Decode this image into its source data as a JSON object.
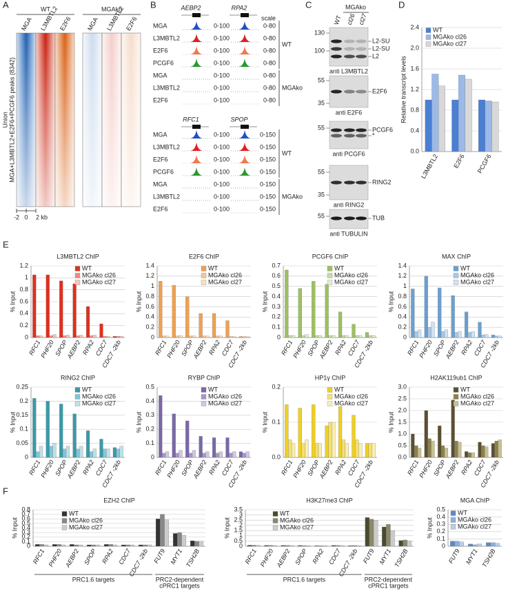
{
  "panel_labels": [
    "A",
    "B",
    "C",
    "D",
    "E",
    "F"
  ],
  "heatmap": {
    "conditions": [
      "WT",
      "MGAko"
    ],
    "columns": [
      "MGA",
      "L3MBTL2",
      "E2F6"
    ],
    "row_label": [
      "Union",
      "MGA+L3MBTL2+E2F6+PCGF6 peaks (8342)"
    ],
    "scale": [
      "-2",
      "0",
      "2 kb"
    ]
  },
  "tracks": {
    "scale_label": "scale",
    "blocks": [
      {
        "genes": [
          "AEBP2",
          "RPA2"
        ],
        "ranges": [
          "0-100",
          "0-80"
        ]
      },
      {
        "genes": [
          "RFC1",
          "SPOP"
        ],
        "ranges": [
          "0-100",
          "0-150"
        ]
      }
    ],
    "conditions": [
      {
        "name": "WT",
        "rows": [
          "MGA",
          "L3MBTL2",
          "E2F6",
          "PCGF6"
        ]
      },
      {
        "name": "MGAko",
        "rows": [
          "MGA",
          "L3MBTL2",
          "E2F6"
        ]
      }
    ]
  },
  "blots": {
    "group": "MGAko",
    "lanes": [
      "WT",
      "cl26",
      "cl27"
    ],
    "panels": [
      {
        "markers": [
          130,
          100
        ],
        "bands": [
          "L2-SU",
          "L2-SU",
          "L2"
        ],
        "antibody": "anti L3MBTL2"
      },
      {
        "markers": [
          55,
          35
        ],
        "bands": [
          "E2F6"
        ],
        "antibody": "anti E2F6"
      },
      {
        "markers": [
          55
        ],
        "bands": [
          "PCGF6",
          "*"
        ],
        "antibody": "anti PCGF6"
      },
      {
        "markers": [
          55,
          35
        ],
        "bands": [
          "RING2"
        ],
        "antibody": "anti RING2"
      },
      {
        "markers": [
          55
        ],
        "bands": [
          "TUB"
        ],
        "antibody": "anti TUBULIN"
      }
    ]
  },
  "chart_data": [
    {
      "type": "bar",
      "ylabel": "Relative transcript levels",
      "categories": [
        "L3MBTL2",
        "E2F6",
        "PCGF6"
      ],
      "series": [
        {
          "name": "WT",
          "color": "#4a7fd4",
          "values": [
            1.0,
            1.0,
            1.0
          ]
        },
        {
          "name": "MGAko cl26",
          "color": "#9cb9e8",
          "values": [
            1.5,
            1.48,
            0.98
          ]
        },
        {
          "name": "MGAko cl27",
          "color": "#d8d8d8",
          "values": [
            1.27,
            1.4,
            0.96
          ]
        }
      ],
      "ylim": [
        0,
        2.4
      ],
      "yticks": [
        {
          "value": 0,
          "label": "0.0"
        },
        0.4,
        0.8,
        1.2,
        1.6,
        {
          "value": 2,
          "label": "2.0"
        },
        2.4
      ],
      "grid": true
    },
    {
      "type": "bar",
      "title": "L3MBTL2 ChIP",
      "ylabel": "% Input",
      "categories": [
        "RFC1",
        "PHF20",
        "SPOP",
        "AEBP2",
        "RPA2",
        "CDC7",
        "CDC7 -2kb"
      ],
      "series": [
        {
          "name": "WT",
          "color": "#e0301e",
          "values": [
            1.05,
            1.05,
            0.95,
            0.9,
            0.52,
            0.23,
            0.02
          ]
        },
        {
          "name": "MGAko cl26",
          "color": "#f08a80",
          "values": [
            0.03,
            0.03,
            0.03,
            0.03,
            0.03,
            0.02,
            0.02
          ]
        },
        {
          "name": "MGAko cl27",
          "color": "#f6c4bc",
          "values": [
            0.03,
            0.05,
            0.04,
            0.04,
            0.04,
            0.02,
            0.02
          ]
        }
      ],
      "ylim": [
        0,
        1.2
      ],
      "yticks": [
        0,
        0.2,
        0.4,
        0.6,
        0.8,
        1,
        1.2
      ],
      "grid": true
    },
    {
      "type": "bar",
      "title": "E2F6 ChIP",
      "ylabel": "% Input",
      "categories": [
        "RFC1",
        "PHF20",
        "SPOP",
        "AEBP2",
        "RPA2",
        "CDC7",
        "CDC7 -2kb"
      ],
      "series": [
        {
          "name": "WT",
          "color": "#f0a050",
          "values": [
            1.1,
            1.02,
            0.8,
            0.47,
            0.47,
            0.33,
            0.02
          ]
        },
        {
          "name": "MGAko cl26",
          "color": "#f6c690",
          "values": [
            0.03,
            0.03,
            0.03,
            0.03,
            0.03,
            0.02,
            0.02
          ]
        },
        {
          "name": "MGAko cl27",
          "color": "#fae0c0",
          "values": [
            0.03,
            0.04,
            0.03,
            0.03,
            0.03,
            0.02,
            0.02
          ]
        }
      ],
      "ylim": [
        0,
        1.4
      ],
      "yticks": [
        0,
        0.2,
        0.4,
        0.6,
        0.8,
        1,
        1.2,
        1.4
      ],
      "grid": true
    },
    {
      "type": "bar",
      "title": "PCGF6 ChIP",
      "ylabel": "% Input",
      "categories": [
        "RFC1",
        "PHF20",
        "SPOP",
        "AEBP2",
        "RPA2",
        "CDC7",
        "CDC7 -2kb"
      ],
      "series": [
        {
          "name": "WT",
          "color": "#9dc060",
          "values": [
            0.66,
            0.48,
            0.55,
            0.52,
            0.25,
            0.13,
            0.05
          ]
        },
        {
          "name": "MGAko cl26",
          "color": "#c8dca0",
          "values": [
            0.02,
            0.02,
            0.02,
            0.02,
            0.02,
            0.02,
            0.02
          ]
        },
        {
          "name": "MGAko cl27",
          "color": "#e2edcf",
          "values": [
            0.02,
            0.03,
            0.02,
            0.02,
            0.02,
            0.02,
            0.02
          ]
        }
      ],
      "ylim": [
        0,
        0.7
      ],
      "yticks": [
        0,
        0.1,
        0.2,
        0.3,
        0.4,
        0.5,
        0.6,
        0.7
      ],
      "grid": true
    },
    {
      "type": "bar",
      "title": "MAX ChIP",
      "ylabel": "% Input",
      "categories": [
        "RFC1",
        "PHF20",
        "SPOP",
        "AEBP2",
        "RPA2",
        "CDC7",
        "CDC7 -2kb"
      ],
      "series": [
        {
          "name": "WT",
          "color": "#6aa0d0",
          "values": [
            0.95,
            1.2,
            0.97,
            0.82,
            0.5,
            0.3,
            0.05
          ]
        },
        {
          "name": "MGAko cl26",
          "color": "#a8c8e8",
          "values": [
            0.12,
            0.2,
            0.12,
            0.1,
            0.1,
            0.05,
            0.03
          ]
        },
        {
          "name": "MGAko cl27",
          "color": "#d0e2f2",
          "values": [
            0.15,
            0.3,
            0.15,
            0.12,
            0.12,
            0.06,
            0.03
          ]
        }
      ],
      "ylim": [
        0,
        1.4
      ],
      "yticks": [
        0,
        0.2,
        0.4,
        0.6,
        0.8,
        1,
        1.2,
        1.4
      ],
      "grid": true
    },
    {
      "type": "bar",
      "title": "RING2 ChIP",
      "ylabel": "% Input",
      "categories": [
        "RFC1",
        "PHF20",
        "SPOP",
        "AEBP2",
        "RPA2",
        "CDC7",
        "CDC7 -2kb"
      ],
      "series": [
        {
          "name": "WT",
          "color": "#3a9aa8",
          "values": [
            0.21,
            0.2,
            0.19,
            0.155,
            0.095,
            0.065,
            0.035
          ]
        },
        {
          "name": "MGAko cl26",
          "color": "#80c8d8",
          "values": [
            0.02,
            0.04,
            0.03,
            0.03,
            0.02,
            0.03,
            0.03
          ]
        },
        {
          "name": "MGAko cl27",
          "color": "#c0e0e8",
          "values": [
            0.04,
            0.05,
            0.04,
            0.04,
            0.03,
            0.03,
            0.04
          ]
        }
      ],
      "ylim": [
        0,
        0.25
      ],
      "yticks": [
        0,
        0.05,
        0.1,
        0.15,
        0.2,
        0.25
      ],
      "grid": true
    },
    {
      "type": "bar",
      "title": "RYBP ChIP",
      "ylabel": "% Input",
      "categories": [
        "RFC1",
        "PHF20",
        "SPOP",
        "AEBP2",
        "RPA2",
        "CDC7",
        "CDC7 -2kb"
      ],
      "series": [
        {
          "name": "WT",
          "color": "#7a68a8",
          "values": [
            0.44,
            0.31,
            0.26,
            0.15,
            0.14,
            0.14,
            0.04
          ]
        },
        {
          "name": "MGAko cl26",
          "color": "#a898c8",
          "values": [
            0.03,
            0.03,
            0.03,
            0.03,
            0.03,
            0.03,
            0.03
          ]
        },
        {
          "name": "MGAko cl27",
          "color": "#d0c8e0",
          "values": [
            0.04,
            0.05,
            0.05,
            0.04,
            0.04,
            0.04,
            0.04
          ]
        }
      ],
      "ylim": [
        0,
        0.5
      ],
      "yticks": [
        0,
        0.1,
        0.2,
        0.3,
        0.4,
        0.5
      ],
      "grid": true
    },
    {
      "type": "bar",
      "title": "HP1γ ChIP",
      "ylabel": "% Input",
      "categories": [
        "RFC1",
        "PHF20",
        "SPOP",
        "AEBP2",
        "RPA2",
        "CDC7",
        "CDC7 -2kb"
      ],
      "series": [
        {
          "name": "WT",
          "color": "#f0d020",
          "values": [
            0.15,
            0.14,
            0.15,
            0.09,
            0.145,
            0.12,
            0.04
          ]
        },
        {
          "name": "MGAko cl26",
          "color": "#f5e070",
          "values": [
            0.05,
            0.04,
            0.04,
            0.1,
            0.05,
            0.05,
            0.04
          ]
        },
        {
          "name": "MGAko cl27",
          "color": "#faeeb0",
          "values": [
            0.04,
            0.05,
            0.04,
            0.1,
            0.04,
            0.04,
            0.04
          ]
        }
      ],
      "ylim": [
        0,
        0.2
      ],
      "yticks": [
        {
          "value": 0,
          "label": "0.0"
        },
        0.1,
        0.2
      ],
      "grid": true
    },
    {
      "type": "bar",
      "title": "H2AK119ub1 ChIP",
      "ylabel": "% Input",
      "categories": [
        "RFC1",
        "PHF20",
        "SPOP",
        "AEBP2",
        "RPA2",
        "CDC7",
        "CDC7 -2kb"
      ],
      "series": [
        {
          "name": "WT",
          "color": "#5a5030",
          "values": [
            1.0,
            2.0,
            1.35,
            2.45,
            0.25,
            0.65,
            0.6
          ]
        },
        {
          "name": "MGAko cl26",
          "color": "#8a8050",
          "values": [
            0.5,
            0.8,
            0.5,
            0.7,
            0.2,
            0.5,
            0.7
          ]
        },
        {
          "name": "MGAko cl27",
          "color": "#c8c090",
          "values": [
            0.4,
            0.7,
            0.4,
            0.65,
            0.2,
            0.45,
            0.75
          ]
        }
      ],
      "ylim": [
        0,
        3
      ],
      "yticks": [
        {
          "value": 0,
          "label": "0.0"
        },
        0.5,
        {
          "value": 1,
          "label": "1.0"
        },
        1.5,
        {
          "value": 2,
          "label": "2.0"
        },
        2.5,
        {
          "value": 3,
          "label": "3.0"
        }
      ],
      "grid": true
    },
    {
      "type": "bar",
      "title": "EZH2 ChIP",
      "ylabel": "% Input",
      "categories": [
        "RFC1",
        "PHF20",
        "AEBP2",
        "SPOP",
        "RPA2",
        "CDC7",
        "CDC7 -2kb",
        "FUT9",
        "MYT1",
        "TSH2B"
      ],
      "series": [
        {
          "name": "WT",
          "color": "#333333",
          "values": [
            0.04,
            0.04,
            0.04,
            0.03,
            0.04,
            0.03,
            0.03,
            0.6,
            0.28,
            0.12
          ]
        },
        {
          "name": "MGAko cl26",
          "color": "#888888",
          "values": [
            0.04,
            0.04,
            0.03,
            0.03,
            0.04,
            0.03,
            0.03,
            0.7,
            0.3,
            0.11
          ]
        },
        {
          "name": "MGAko cl27",
          "color": "#cccccc",
          "values": [
            0.03,
            0.03,
            0.03,
            0.03,
            0.03,
            0.03,
            0.03,
            0.58,
            0.24,
            0.11
          ]
        }
      ],
      "ylim": [
        0,
        0.8
      ],
      "yticks": [
        0,
        0.1,
        0.2,
        0.3,
        0.4,
        0.5,
        0.6,
        0.7,
        0.8
      ],
      "grid": true,
      "groups": [
        [
          "PRC1.6 targets"
        ],
        [
          "PRC2-dependent",
          "cPRC1 targets"
        ]
      ]
    },
    {
      "type": "bar",
      "title": "H3K27me3 ChIP",
      "ylabel": "% Input",
      "categories": [
        "RFC1",
        "PHF20",
        "AEBP2",
        "SPOP",
        "RPA2",
        "CDC7",
        "CDC7 -2kb",
        "FUT9",
        "MYT1",
        "TSH2B"
      ],
      "series": [
        {
          "name": "WT",
          "color": "#4a4a30",
          "values": [
            0.1,
            0.08,
            0.08,
            0.07,
            0.05,
            0.08,
            0.06,
            2.75,
            1.85,
            0.55
          ]
        },
        {
          "name": "MGAko cl26",
          "color": "#8a8a6a",
          "values": [
            0.1,
            0.08,
            0.08,
            0.06,
            0.05,
            0.07,
            0.07,
            2.6,
            2.1,
            0.6
          ]
        },
        {
          "name": "MGAko cl27",
          "color": "#cccccc",
          "values": [
            0.09,
            0.07,
            0.07,
            0.06,
            0.05,
            0.07,
            0.06,
            2.5,
            1.5,
            0.5
          ]
        }
      ],
      "ylim": [
        0,
        3.5
      ],
      "yticks": [
        0,
        0.5,
        1,
        1.5,
        2,
        2.5,
        3,
        3.5
      ],
      "grid": true,
      "groups": [
        [
          "PRC1.6 targets"
        ],
        [
          "PRC2-dependent",
          "cPRC1 targets"
        ]
      ]
    },
    {
      "type": "bar",
      "title": "MGA ChIP",
      "ylabel": "% Input",
      "categories": [
        "FUT9",
        "MYT1",
        "TSH2B"
      ],
      "series": [
        {
          "name": "WT",
          "color": "#5a8ac6",
          "values": [
            0.07,
            0.03,
            0.05
          ]
        },
        {
          "name": "MGAko cl26",
          "color": "#8ab0e0",
          "values": [
            0.07,
            0.02,
            0.05
          ]
        },
        {
          "name": "MGAko cl27",
          "color": "#b8cee8",
          "values": [
            0.06,
            0.03,
            0.04
          ]
        }
      ],
      "ylim": [
        0,
        0.5
      ],
      "yticks": [
        0,
        0.1,
        0.2,
        0.3,
        0.4,
        0.5
      ],
      "grid": true
    }
  ]
}
